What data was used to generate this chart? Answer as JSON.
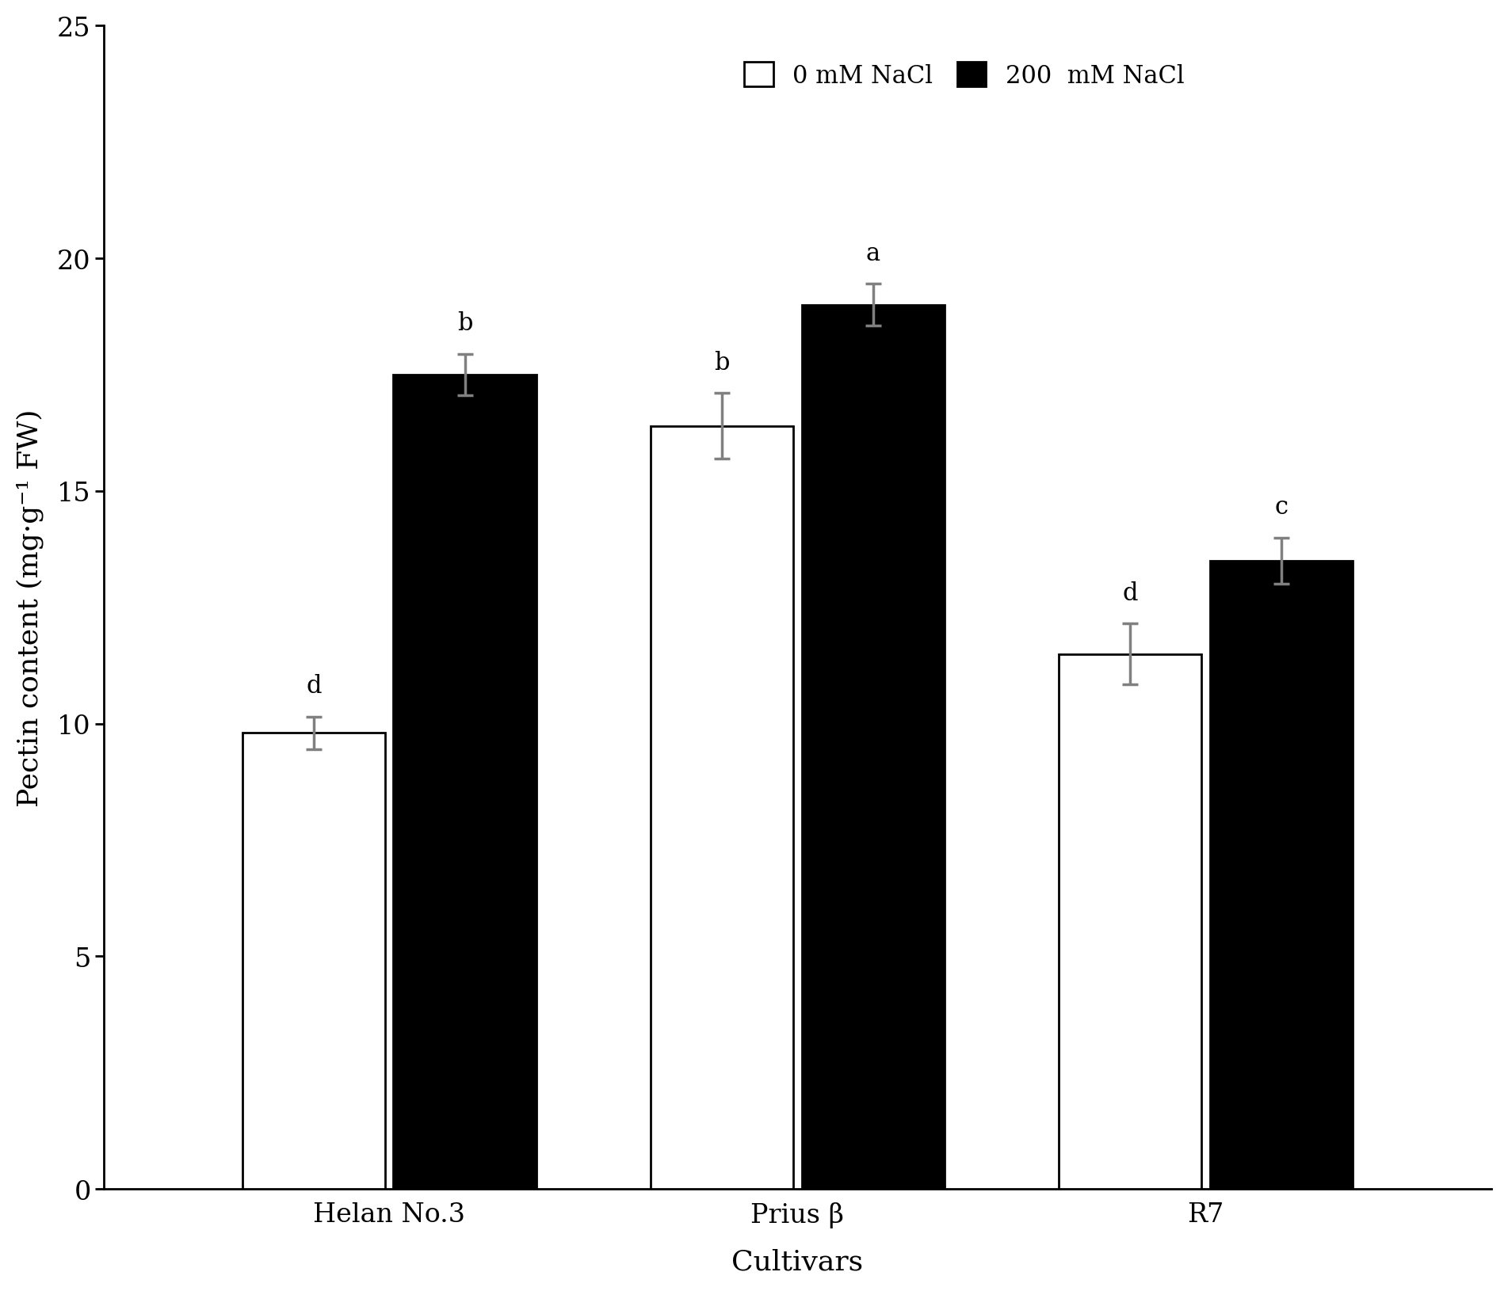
{
  "cultivars": [
    "Helan No.3",
    "Prius β",
    "R7"
  ],
  "values_0mM": [
    9.8,
    16.4,
    11.5
  ],
  "values_200mM": [
    17.5,
    19.0,
    13.5
  ],
  "errors_0mM": [
    0.35,
    0.7,
    0.65
  ],
  "errors_200mM": [
    0.45,
    0.45,
    0.5
  ],
  "letters_0mM": [
    "d",
    "b",
    "d"
  ],
  "letters_200mM": [
    "b",
    "a",
    "c"
  ],
  "ylabel": "Pectin content (mg·g⁻¹ FW)",
  "xlabel": "Cultivars",
  "ylim": [
    0,
    25
  ],
  "yticks": [
    0,
    5,
    10,
    15,
    20,
    25
  ],
  "bar_width": 0.35,
  "bar_colors": [
    "white",
    "black"
  ],
  "bar_edgecolors": [
    "black",
    "black"
  ],
  "legend_labels": [
    "0 mM NaCl",
    "200  mM NaCl"
  ],
  "error_color": "#808080",
  "letter_fontsize": 22,
  "axis_label_fontsize": 26,
  "tick_fontsize": 24,
  "legend_fontsize": 22,
  "bar_linewidth": 2.0,
  "figwidth": 19.03,
  "figheight": 16.31,
  "dpi": 100
}
